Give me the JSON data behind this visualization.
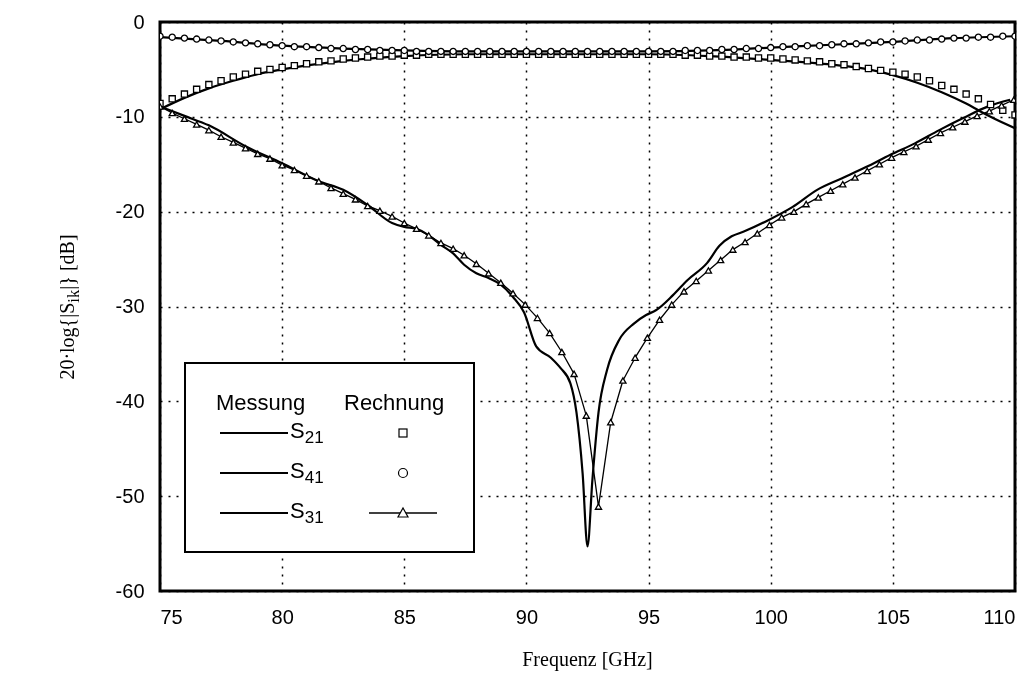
{
  "chart_data": {
    "type": "line",
    "xlabel": "Frequenz [GHz]",
    "ylabel": "20·log{|S$_{ik}$|}  [dB]",
    "annotations": [
      "Messung",
      "Rechnung"
    ],
    "xlim": [
      75,
      110
    ],
    "xticks": [
      75,
      80,
      85,
      90,
      95,
      100,
      105,
      110
    ],
    "ylim": [
      -60,
      0
    ],
    "yticks": [
      -60,
      -50,
      -40,
      -30,
      -20,
      -10,
      0
    ],
    "grid": true,
    "legend": "bottom left",
    "series": [
      {
        "type": "line",
        "color": "#000000",
        "marker": "none",
        "line_style": "solid",
        "x": [
          75,
          76,
          77,
          78,
          79,
          80,
          82.5,
          85,
          87.5,
          90,
          95,
          97.5,
          100,
          102.5,
          104,
          105,
          106,
          107,
          108,
          108.5,
          109,
          110
        ],
        "values": [
          -9.2,
          -8.0,
          -7.0,
          -6.2,
          -5.5,
          -5.0,
          -4.1,
          -3.6,
          -3.4,
          -3.4,
          -3.4,
          -3.6,
          -4.0,
          -4.5,
          -5.0,
          -5.6,
          -6.4,
          -7.4,
          -8.6,
          -9.3,
          -10.0,
          -11.2
        ]
      },
      {
        "type": "line",
        "color": "#000000",
        "marker": "none",
        "line_style": "solid",
        "x": [
          75,
          77.5,
          80,
          82.5,
          85,
          87.5,
          90,
          92.5,
          95,
          97.5,
          100,
          102.5,
          105,
          107.5,
          110
        ],
        "values": [
          -1.6,
          -2.0,
          -2.5,
          -2.8,
          -3.0,
          -3.1,
          -3.1,
          -3.1,
          -3.1,
          -3.0,
          -2.7,
          -2.4,
          -2.1,
          -1.7,
          -1.5
        ]
      },
      {
        "type": "line",
        "color": "#000000",
        "marker": "none",
        "line_style": "solid",
        "x": [
          75,
          76,
          77,
          78.5,
          80,
          81.5,
          82.5,
          83.5,
          84.5,
          85,
          85.5,
          86,
          86.5,
          87,
          87.45,
          87.95,
          88.45,
          88.95,
          89.45,
          89.9,
          90.4,
          91,
          91.4,
          91.8,
          92.05,
          92.3,
          92.5,
          92.7,
          92.95,
          93.3,
          93.8,
          94.4,
          94.9,
          95.3,
          96,
          96.6,
          97.4,
          97.9,
          98.4,
          98.9,
          99.9,
          100.9,
          101.9,
          102.9,
          103.9,
          104.9,
          105.9,
          106.9,
          107.9,
          108.9,
          109.8
        ],
        "values": [
          -8.9,
          -9.9,
          -10.9,
          -13.1,
          -14.9,
          -16.8,
          -17.7,
          -19.3,
          -21.2,
          -21.6,
          -21.8,
          -22.5,
          -23.5,
          -24.4,
          -25.6,
          -26.5,
          -27.0,
          -27.7,
          -29.0,
          -30.6,
          -34.2,
          -35.4,
          -36.5,
          -38.1,
          -41.2,
          -47.6,
          -55.3,
          -48.3,
          -41.2,
          -36.7,
          -33.5,
          -31.8,
          -30.9,
          -30.4,
          -28.8,
          -27.2,
          -25.4,
          -23.6,
          -22.6,
          -22.1,
          -20.9,
          -19.5,
          -17.7,
          -16.5,
          -15.3,
          -14.0,
          -12.8,
          -11.4,
          -10.1,
          -8.9,
          -8.2
        ]
      },
      {
        "name": "S$_{21}$",
        "type": "scatter",
        "color": "#000000",
        "marker": "square",
        "x": [
          75,
          75.5,
          76,
          76.5,
          77,
          77.5,
          78,
          78.5,
          79,
          79.5,
          80,
          80.5,
          81,
          81.5,
          82,
          82.5,
          83,
          83.5,
          84,
          84.5,
          85,
          85.5,
          86,
          86.5,
          87,
          87.5,
          88,
          88.5,
          89,
          89.5,
          90,
          90.5,
          91,
          91.5,
          92,
          92.5,
          93,
          93.5,
          94,
          94.5,
          95,
          95.5,
          96,
          96.5,
          97,
          97.5,
          98,
          98.5,
          99,
          99.5,
          100,
          100.5,
          101,
          101.5,
          102,
          102.5,
          103,
          103.5,
          104,
          104.5,
          105,
          105.5,
          106,
          106.5,
          107,
          107.5,
          108,
          108.5,
          109,
          109.5,
          110
        ],
        "values": [
          -8.6,
          -8.1,
          -7.6,
          -7.1,
          -6.6,
          -6.2,
          -5.8,
          -5.5,
          -5.2,
          -5.0,
          -4.8,
          -4.6,
          -4.4,
          -4.2,
          -4.1,
          -3.9,
          -3.8,
          -3.7,
          -3.6,
          -3.6,
          -3.5,
          -3.5,
          -3.4,
          -3.4,
          -3.4,
          -3.4,
          -3.4,
          -3.4,
          -3.4,
          -3.4,
          -3.4,
          -3.4,
          -3.4,
          -3.4,
          -3.4,
          -3.4,
          -3.4,
          -3.4,
          -3.4,
          -3.4,
          -3.4,
          -3.4,
          -3.4,
          -3.5,
          -3.5,
          -3.6,
          -3.6,
          -3.7,
          -3.7,
          -3.8,
          -3.8,
          -3.9,
          -4.0,
          -4.1,
          -4.2,
          -4.4,
          -4.5,
          -4.7,
          -4.9,
          -5.1,
          -5.3,
          -5.5,
          -5.8,
          -6.2,
          -6.7,
          -7.1,
          -7.6,
          -8.1,
          -8.7,
          -9.3,
          -9.8
        ]
      },
      {
        "name": "S$_{41}$",
        "type": "scatter",
        "color": "#000000",
        "marker": "circle",
        "x": [
          75,
          75.5,
          76,
          76.5,
          77,
          77.5,
          78,
          78.5,
          79,
          79.5,
          80,
          80.5,
          81,
          81.5,
          82,
          82.5,
          83,
          83.5,
          84,
          84.5,
          85,
          85.5,
          86,
          86.5,
          87,
          87.5,
          88,
          88.5,
          89,
          89.5,
          90,
          90.5,
          91,
          91.5,
          92,
          92.5,
          93,
          93.5,
          94,
          94.5,
          95,
          95.5,
          96,
          96.5,
          97,
          97.5,
          98,
          98.5,
          99,
          99.5,
          100,
          100.5,
          101,
          101.5,
          102,
          102.5,
          103,
          103.5,
          104,
          104.5,
          105,
          105.5,
          106,
          106.5,
          107,
          107.5,
          108,
          108.5,
          109,
          109.5,
          110
        ],
        "values": [
          -1.5,
          -1.6,
          -1.7,
          -1.8,
          -1.9,
          -2.0,
          -2.1,
          -2.2,
          -2.3,
          -2.4,
          -2.5,
          -2.6,
          -2.6,
          -2.7,
          -2.8,
          -2.8,
          -2.9,
          -2.9,
          -3.0,
          -3.0,
          -3.0,
          -3.1,
          -3.1,
          -3.1,
          -3.1,
          -3.1,
          -3.1,
          -3.1,
          -3.1,
          -3.1,
          -3.1,
          -3.1,
          -3.1,
          -3.1,
          -3.1,
          -3.1,
          -3.1,
          -3.1,
          -3.1,
          -3.1,
          -3.1,
          -3.1,
          -3.1,
          -3.0,
          -3.0,
          -3.0,
          -2.9,
          -2.9,
          -2.8,
          -2.8,
          -2.7,
          -2.6,
          -2.6,
          -2.5,
          -2.5,
          -2.4,
          -2.3,
          -2.3,
          -2.2,
          -2.1,
          -2.1,
          -2.0,
          -1.9,
          -1.9,
          -1.8,
          -1.7,
          -1.7,
          -1.6,
          -1.6,
          -1.5,
          -1.5
        ]
      },
      {
        "name": "S$_{31}$",
        "type": "line",
        "color": "#000000",
        "marker": "triangle",
        "line_style": "solid",
        "x": [
          75,
          75.5,
          76,
          76.5,
          77,
          77.5,
          78,
          78.5,
          79,
          79.5,
          80,
          80.5,
          81,
          81.5,
          82,
          82.5,
          83,
          83.5,
          84,
          84.5,
          85,
          85.5,
          86,
          86.5,
          87,
          87.45,
          87.95,
          88.45,
          88.95,
          89.45,
          89.95,
          90.45,
          90.95,
          91.45,
          91.95,
          92.45,
          92.95,
          93.45,
          93.95,
          94.45,
          94.95,
          95.45,
          95.95,
          96.45,
          96.95,
          97.45,
          97.95,
          98.45,
          98.95,
          99.45,
          99.95,
          100.45,
          100.95,
          101.45,
          101.95,
          102.45,
          102.95,
          103.45,
          103.95,
          104.45,
          104.95,
          105.45,
          105.95,
          106.45,
          106.95,
          107.45,
          107.95,
          108.45,
          108.95,
          109.45,
          109.95
        ],
        "values": [
          -8.9,
          -9.6,
          -10.2,
          -10.8,
          -11.4,
          -12.1,
          -12.7,
          -13.3,
          -13.9,
          -14.4,
          -15.1,
          -15.6,
          -16.2,
          -16.8,
          -17.5,
          -18.1,
          -18.7,
          -19.4,
          -19.9,
          -20.5,
          -21.2,
          -21.8,
          -22.5,
          -23.3,
          -23.9,
          -24.6,
          -25.5,
          -26.5,
          -27.5,
          -28.6,
          -29.8,
          -31.2,
          -32.8,
          -34.8,
          -37.1,
          -41.5,
          -51.1,
          -42.2,
          -37.8,
          -35.4,
          -33.3,
          -31.4,
          -29.8,
          -28.4,
          -27.3,
          -26.2,
          -25.1,
          -24.0,
          -23.2,
          -22.3,
          -21.4,
          -20.6,
          -20.0,
          -19.2,
          -18.5,
          -17.8,
          -17.1,
          -16.4,
          -15.7,
          -15.0,
          -14.3,
          -13.7,
          -13.1,
          -12.4,
          -11.7,
          -11.1,
          -10.5,
          -9.9,
          -9.4,
          -8.8,
          -8.2
        ]
      }
    ]
  }
}
